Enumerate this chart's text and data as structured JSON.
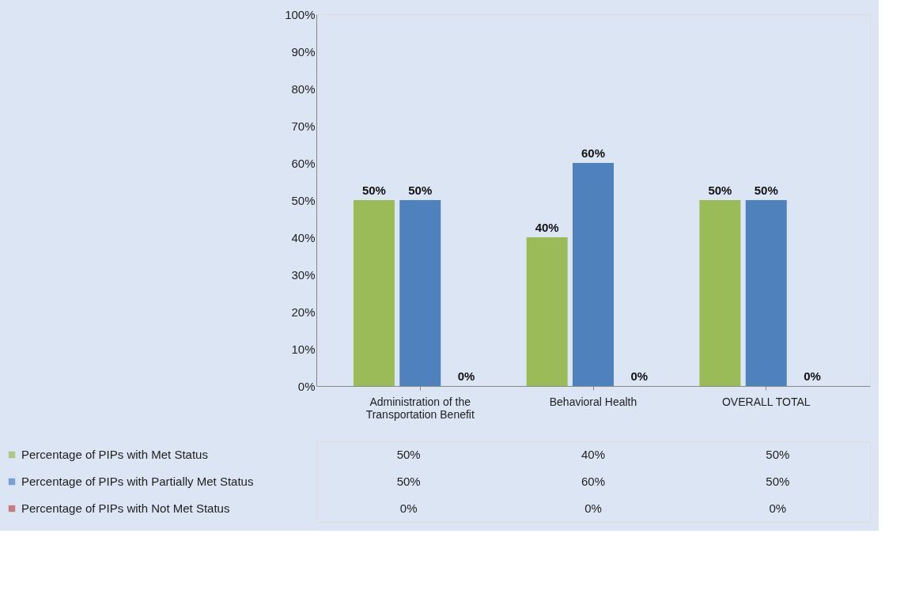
{
  "chart_data": {
    "type": "bar",
    "categories": [
      "Administration of the Transportation Benefit",
      "Behavioral Health",
      "OVERALL TOTAL"
    ],
    "series": [
      {
        "name": "Percentage of PIPs with Met Status",
        "color": "#9bbb59",
        "values": [
          50,
          40,
          50
        ],
        "value_labels": [
          "50%",
          "40%",
          "50%"
        ]
      },
      {
        "name": "Percentage of PIPs with Partially Met Status",
        "color": "#4f81bd",
        "values": [
          50,
          60,
          50
        ],
        "value_labels": [
          "50%",
          "60%",
          "50%"
        ]
      },
      {
        "name": "Percentage of PIPs with Not Met Status",
        "color": "#c0504d",
        "values": [
          0,
          0,
          0
        ],
        "value_labels": [
          "0%",
          "0%",
          "0%"
        ]
      }
    ],
    "ylim": [
      0,
      100
    ],
    "yticks": [
      {
        "value": 0,
        "label": "0%"
      },
      {
        "value": 10,
        "label": "10%"
      },
      {
        "value": 20,
        "label": "20%"
      },
      {
        "value": 30,
        "label": "30%"
      },
      {
        "value": 40,
        "label": "40%"
      },
      {
        "value": 50,
        "label": "50%"
      },
      {
        "value": 60,
        "label": "60%"
      },
      {
        "value": 70,
        "label": "70%"
      },
      {
        "value": 80,
        "label": "80%"
      },
      {
        "value": 90,
        "label": "90%"
      },
      {
        "value": 100,
        "label": "100%"
      }
    ],
    "grid": false,
    "legend": "bottom"
  }
}
